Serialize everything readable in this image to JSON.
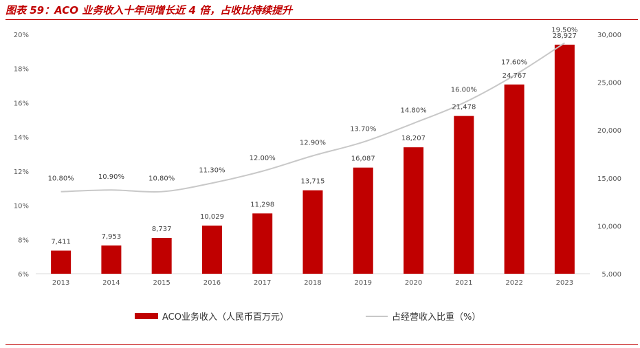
{
  "title": "图表 59：ACO 业务收入十年间增长近 4 倍，占收比持续提升",
  "chart_data": {
    "type": "bar",
    "categories": [
      "2013",
      "2014",
      "2015",
      "2016",
      "2017",
      "2018",
      "2019",
      "2020",
      "2021",
      "2022",
      "2023"
    ],
    "series": [
      {
        "name": "ACO业务收入（人民币百万元）",
        "type": "bar",
        "axis": "right",
        "color": "#c00000",
        "values": [
          7411,
          7953,
          8737,
          10029,
          11298,
          13715,
          16087,
          18207,
          21478,
          24767,
          28927
        ],
        "labels": [
          "7,411",
          "7,953",
          "8,737",
          "10,029",
          "11,298",
          "13,715",
          "16,087",
          "18,207",
          "21,478",
          "24,767",
          "28,927"
        ]
      },
      {
        "name": "占经营收入比重（%）",
        "type": "line",
        "axis": "left",
        "color": "#c8c8c8",
        "values": [
          10.8,
          10.9,
          10.8,
          11.3,
          12.0,
          12.9,
          13.7,
          14.8,
          16.0,
          17.6,
          19.5
        ],
        "labels": [
          "10.80%",
          "10.90%",
          "10.80%",
          "11.30%",
          "12.00%",
          "12.90%",
          "13.70%",
          "14.80%",
          "16.00%",
          "17.60%",
          "19.50%"
        ]
      }
    ],
    "left_axis": {
      "ylim": [
        6,
        20
      ],
      "ticks": [
        6,
        8,
        10,
        12,
        14,
        16,
        18,
        20
      ],
      "tick_labels": [
        "6%",
        "8%",
        "10%",
        "12%",
        "14%",
        "16%",
        "18%",
        "20%"
      ]
    },
    "right_axis": {
      "ylim": [
        5000,
        30000
      ],
      "ticks": [
        5000,
        10000,
        15000,
        20000,
        25000,
        30000
      ],
      "tick_labels": [
        "5,000",
        "10,000",
        "15,000",
        "20,000",
        "25,000",
        "30,000"
      ]
    },
    "legend_position": "bottom",
    "grid": false
  }
}
